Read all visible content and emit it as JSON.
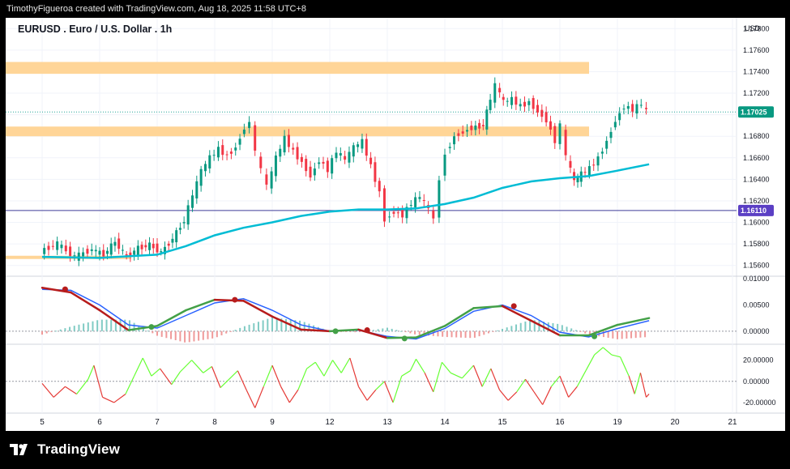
{
  "attribution": "TimothyFigueroa created with TradingView.com, Aug 18, 2025 11:58 UTC+8",
  "brand": "TradingView",
  "chart_data": [
    {
      "type": "line",
      "panel": "price",
      "title": "EURUSD . Euro / U.S. Dollar . 1h",
      "currency_label": "USD",
      "y_ticks": [
        "1.17800",
        "1.17600",
        "1.17400",
        "1.17200",
        "1.17000",
        "1.16800",
        "1.16600",
        "1.16400",
        "1.16200",
        "1.16000",
        "1.15800",
        "1.15600"
      ],
      "ylim": [
        1.155,
        1.179
      ],
      "x_ticks": [
        "5",
        "6",
        "7",
        "8",
        "9",
        "12",
        "13",
        "14",
        "15",
        "16",
        "19",
        "20",
        "21"
      ],
      "last_price_label": "1.17025",
      "last_price": 1.17025,
      "horizontal_line_label": "1.16110",
      "horizontal_line": 1.1611,
      "zones": [
        {
          "from": 1.1738,
          "to": 1.1749,
          "color": "#ffd597"
        },
        {
          "from": 1.168,
          "to": 1.1689,
          "color": "#ffd597"
        },
        {
          "from": 1.1566,
          "to": 1.1569,
          "color": "#ffd597"
        }
      ],
      "price_series": [
        {
          "x": 0.0,
          "y": 1.1573
        },
        {
          "x": 0.3,
          "y": 1.158
        },
        {
          "x": 0.6,
          "y": 1.1568
        },
        {
          "x": 0.9,
          "y": 1.1575
        },
        {
          "x": 1.1,
          "y": 1.157
        },
        {
          "x": 1.3,
          "y": 1.1582
        },
        {
          "x": 1.5,
          "y": 1.1568
        },
        {
          "x": 1.7,
          "y": 1.1576
        },
        {
          "x": 1.9,
          "y": 1.1579
        },
        {
          "x": 2.1,
          "y": 1.1572
        },
        {
          "x": 2.3,
          "y": 1.1585
        },
        {
          "x": 2.5,
          "y": 1.1602
        },
        {
          "x": 2.65,
          "y": 1.1625
        },
        {
          "x": 2.8,
          "y": 1.1648
        },
        {
          "x": 2.95,
          "y": 1.166
        },
        {
          "x": 3.1,
          "y": 1.1668
        },
        {
          "x": 3.25,
          "y": 1.1662
        },
        {
          "x": 3.4,
          "y": 1.167
        },
        {
          "x": 3.55,
          "y": 1.1688
        },
        {
          "x": 3.65,
          "y": 1.1693
        },
        {
          "x": 3.75,
          "y": 1.1665
        },
        {
          "x": 3.85,
          "y": 1.1648
        },
        {
          "x": 3.95,
          "y": 1.1633
        },
        {
          "x": 4.1,
          "y": 1.166
        },
        {
          "x": 4.25,
          "y": 1.1678
        },
        {
          "x": 4.4,
          "y": 1.1666
        },
        {
          "x": 4.55,
          "y": 1.1656
        },
        {
          "x": 4.7,
          "y": 1.1643
        },
        {
          "x": 4.85,
          "y": 1.1658
        },
        {
          "x": 5.0,
          "y": 1.1649
        },
        {
          "x": 5.15,
          "y": 1.1666
        },
        {
          "x": 5.3,
          "y": 1.1658
        },
        {
          "x": 5.45,
          "y": 1.167
        },
        {
          "x": 5.6,
          "y": 1.1675
        },
        {
          "x": 5.75,
          "y": 1.1652
        },
        {
          "x": 5.9,
          "y": 1.1628
        },
        {
          "x": 6.0,
          "y": 1.1603
        },
        {
          "x": 6.15,
          "y": 1.161
        },
        {
          "x": 6.3,
          "y": 1.1607
        },
        {
          "x": 6.45,
          "y": 1.1618
        },
        {
          "x": 6.6,
          "y": 1.1624
        },
        {
          "x": 6.75,
          "y": 1.1612
        },
        {
          "x": 6.85,
          "y": 1.1603
        },
        {
          "x": 6.95,
          "y": 1.164
        },
        {
          "x": 7.05,
          "y": 1.1665
        },
        {
          "x": 7.2,
          "y": 1.168
        },
        {
          "x": 7.35,
          "y": 1.1684
        },
        {
          "x": 7.5,
          "y": 1.1688
        },
        {
          "x": 7.7,
          "y": 1.169
        },
        {
          "x": 7.82,
          "y": 1.1715
        },
        {
          "x": 7.92,
          "y": 1.1727
        },
        {
          "x": 8.05,
          "y": 1.1712
        },
        {
          "x": 8.2,
          "y": 1.1714
        },
        {
          "x": 8.35,
          "y": 1.1708
        },
        {
          "x": 8.5,
          "y": 1.1712
        },
        {
          "x": 8.65,
          "y": 1.1703
        },
        {
          "x": 8.8,
          "y": 1.1695
        },
        {
          "x": 8.95,
          "y": 1.1676
        },
        {
          "x": 9.05,
          "y": 1.169
        },
        {
          "x": 9.15,
          "y": 1.166
        },
        {
          "x": 9.28,
          "y": 1.1638
        },
        {
          "x": 9.4,
          "y": 1.1645
        },
        {
          "x": 9.55,
          "y": 1.165
        },
        {
          "x": 9.7,
          "y": 1.166
        },
        {
          "x": 9.85,
          "y": 1.1676
        },
        {
          "x": 10.0,
          "y": 1.1695
        },
        {
          "x": 10.15,
          "y": 1.1708
        },
        {
          "x": 10.3,
          "y": 1.1705
        },
        {
          "x": 10.45,
          "y": 1.171
        },
        {
          "x": 10.55,
          "y": 1.1703
        }
      ],
      "ema_series": [
        {
          "x": 0.0,
          "y": 1.1568
        },
        {
          "x": 1.0,
          "y": 1.1567
        },
        {
          "x": 2.0,
          "y": 1.157
        },
        {
          "x": 2.5,
          "y": 1.1578
        },
        {
          "x": 3.0,
          "y": 1.1588
        },
        {
          "x": 3.5,
          "y": 1.1595
        },
        {
          "x": 4.0,
          "y": 1.16
        },
        {
          "x": 4.5,
          "y": 1.1606
        },
        {
          "x": 5.0,
          "y": 1.161
        },
        {
          "x": 5.5,
          "y": 1.1612
        },
        {
          "x": 6.0,
          "y": 1.1612
        },
        {
          "x": 6.5,
          "y": 1.1613
        },
        {
          "x": 7.0,
          "y": 1.1617
        },
        {
          "x": 7.5,
          "y": 1.1623
        },
        {
          "x": 8.0,
          "y": 1.1632
        },
        {
          "x": 8.5,
          "y": 1.1638
        },
        {
          "x": 9.0,
          "y": 1.1641
        },
        {
          "x": 9.5,
          "y": 1.1643
        },
        {
          "x": 10.0,
          "y": 1.1648
        },
        {
          "x": 10.55,
          "y": 1.1654
        }
      ]
    },
    {
      "type": "line",
      "panel": "oscillator",
      "y_ticks": [
        "0.01000",
        "0.00500",
        "0.00000"
      ],
      "ylim": [
        -0.0025,
        0.0105
      ],
      "fast_line_color": "#2962ff",
      "signal_colors": {
        "rising": "#43a047",
        "falling": "#b71c1c"
      },
      "fast_line": [
        {
          "x": 0.0,
          "y": 0.008
        },
        {
          "x": 0.5,
          "y": 0.0078
        },
        {
          "x": 1.0,
          "y": 0.005
        },
        {
          "x": 1.5,
          "y": 0.0012
        },
        {
          "x": 2.0,
          "y": 0.0006
        },
        {
          "x": 2.5,
          "y": 0.003
        },
        {
          "x": 3.0,
          "y": 0.0054
        },
        {
          "x": 3.5,
          "y": 0.0062
        },
        {
          "x": 4.0,
          "y": 0.004
        },
        {
          "x": 4.5,
          "y": 0.0012
        },
        {
          "x": 5.0,
          "y": 0.0
        },
        {
          "x": 5.5,
          "y": 0.0002
        },
        {
          "x": 6.0,
          "y": -0.001
        },
        {
          "x": 6.5,
          "y": -0.0015
        },
        {
          "x": 7.0,
          "y": 0.0005
        },
        {
          "x": 7.5,
          "y": 0.0038
        },
        {
          "x": 8.0,
          "y": 0.005
        },
        {
          "x": 8.5,
          "y": 0.003
        },
        {
          "x": 9.0,
          "y": -0.0002
        },
        {
          "x": 9.5,
          "y": -0.0011
        },
        {
          "x": 10.0,
          "y": 0.0005
        },
        {
          "x": 10.55,
          "y": 0.002
        }
      ],
      "signal_line": [
        {
          "x": 0.0,
          "y": 0.0083
        },
        {
          "x": 0.5,
          "y": 0.0074
        },
        {
          "x": 1.0,
          "y": 0.004
        },
        {
          "x": 1.5,
          "y": 0.0002
        },
        {
          "x": 2.0,
          "y": 0.001
        },
        {
          "x": 2.5,
          "y": 0.004
        },
        {
          "x": 3.0,
          "y": 0.006
        },
        {
          "x": 3.5,
          "y": 0.0058
        },
        {
          "x": 4.0,
          "y": 0.0028
        },
        {
          "x": 4.5,
          "y": 0.0003
        },
        {
          "x": 5.0,
          "y": 0.0
        },
        {
          "x": 5.5,
          "y": 0.0003
        },
        {
          "x": 6.0,
          "y": -0.0013
        },
        {
          "x": 6.5,
          "y": -0.0012
        },
        {
          "x": 7.0,
          "y": 0.001
        },
        {
          "x": 7.5,
          "y": 0.0044
        },
        {
          "x": 8.0,
          "y": 0.0048
        },
        {
          "x": 8.5,
          "y": 0.002
        },
        {
          "x": 9.0,
          "y": -0.0008
        },
        {
          "x": 9.5,
          "y": -0.0008
        },
        {
          "x": 10.0,
          "y": 0.0012
        },
        {
          "x": 10.55,
          "y": 0.0025
        }
      ],
      "cross_markers": [
        {
          "x": 0.4,
          "y": 0.008,
          "dir": "falling"
        },
        {
          "x": 1.9,
          "y": 0.0008,
          "dir": "rising"
        },
        {
          "x": 3.35,
          "y": 0.006,
          "dir": "falling"
        },
        {
          "x": 5.1,
          "y": 0.0,
          "dir": "rising"
        },
        {
          "x": 5.65,
          "y": 0.0002,
          "dir": "falling"
        },
        {
          "x": 6.3,
          "y": -0.0014,
          "dir": "rising"
        },
        {
          "x": 8.2,
          "y": 0.0048,
          "dir": "falling"
        },
        {
          "x": 9.6,
          "y": -0.001,
          "dir": "rising"
        }
      ]
    },
    {
      "type": "line",
      "panel": "momentum",
      "y_ticks": [
        "20.00000",
        "0.00000",
        "-20.00000"
      ],
      "ylim": [
        -30,
        35
      ],
      "rising_color": "#66ff33",
      "falling_color": "#e53935",
      "series": [
        {
          "x": 0.0,
          "y": -2
        },
        {
          "x": 0.2,
          "y": -15
        },
        {
          "x": 0.4,
          "y": -5
        },
        {
          "x": 0.6,
          "y": -12
        },
        {
          "x": 0.8,
          "y": 2
        },
        {
          "x": 0.9,
          "y": 15
        },
        {
          "x": 1.05,
          "y": -15
        },
        {
          "x": 1.25,
          "y": -20
        },
        {
          "x": 1.45,
          "y": -12
        },
        {
          "x": 1.6,
          "y": 5
        },
        {
          "x": 1.75,
          "y": 22
        },
        {
          "x": 1.9,
          "y": 5
        },
        {
          "x": 2.05,
          "y": 12
        },
        {
          "x": 2.25,
          "y": -3
        },
        {
          "x": 2.4,
          "y": 9
        },
        {
          "x": 2.6,
          "y": 20
        },
        {
          "x": 2.8,
          "y": 8
        },
        {
          "x": 2.95,
          "y": 14
        },
        {
          "x": 3.1,
          "y": -6
        },
        {
          "x": 3.25,
          "y": 2
        },
        {
          "x": 3.4,
          "y": 10
        },
        {
          "x": 3.55,
          "y": -8
        },
        {
          "x": 3.7,
          "y": -25
        },
        {
          "x": 3.85,
          "y": -5
        },
        {
          "x": 4.0,
          "y": 15
        },
        {
          "x": 4.15,
          "y": -5
        },
        {
          "x": 4.3,
          "y": -20
        },
        {
          "x": 4.45,
          "y": -8
        },
        {
          "x": 4.6,
          "y": 12
        },
        {
          "x": 4.75,
          "y": 18
        },
        {
          "x": 4.9,
          "y": 5
        },
        {
          "x": 5.05,
          "y": 20
        },
        {
          "x": 5.2,
          "y": 8
        },
        {
          "x": 5.35,
          "y": 22
        },
        {
          "x": 5.5,
          "y": -5
        },
        {
          "x": 5.65,
          "y": -18
        },
        {
          "x": 5.8,
          "y": -8
        },
        {
          "x": 5.95,
          "y": 0
        },
        {
          "x": 6.1,
          "y": -20
        },
        {
          "x": 6.25,
          "y": 5
        },
        {
          "x": 6.4,
          "y": 10
        },
        {
          "x": 6.5,
          "y": 21
        },
        {
          "x": 6.65,
          "y": 8
        },
        {
          "x": 6.8,
          "y": -10
        },
        {
          "x": 6.95,
          "y": 18
        },
        {
          "x": 7.1,
          "y": 8
        },
        {
          "x": 7.3,
          "y": 3
        },
        {
          "x": 7.5,
          "y": 15
        },
        {
          "x": 7.65,
          "y": -5
        },
        {
          "x": 7.8,
          "y": 12
        },
        {
          "x": 7.95,
          "y": -8
        },
        {
          "x": 8.1,
          "y": -18
        },
        {
          "x": 8.25,
          "y": -10
        },
        {
          "x": 8.4,
          "y": 2
        },
        {
          "x": 8.55,
          "y": -10
        },
        {
          "x": 8.7,
          "y": -22
        },
        {
          "x": 8.85,
          "y": -5
        },
        {
          "x": 9.0,
          "y": 5
        },
        {
          "x": 9.15,
          "y": -15
        },
        {
          "x": 9.3,
          "y": -5
        },
        {
          "x": 9.45,
          "y": 10
        },
        {
          "x": 9.6,
          "y": 25
        },
        {
          "x": 9.75,
          "y": 32
        },
        {
          "x": 9.9,
          "y": 25
        },
        {
          "x": 10.05,
          "y": 23
        },
        {
          "x": 10.2,
          "y": 5
        },
        {
          "x": 10.3,
          "y": -12
        },
        {
          "x": 10.4,
          "y": 8
        },
        {
          "x": 10.5,
          "y": -15
        },
        {
          "x": 10.55,
          "y": -12
        }
      ]
    }
  ]
}
